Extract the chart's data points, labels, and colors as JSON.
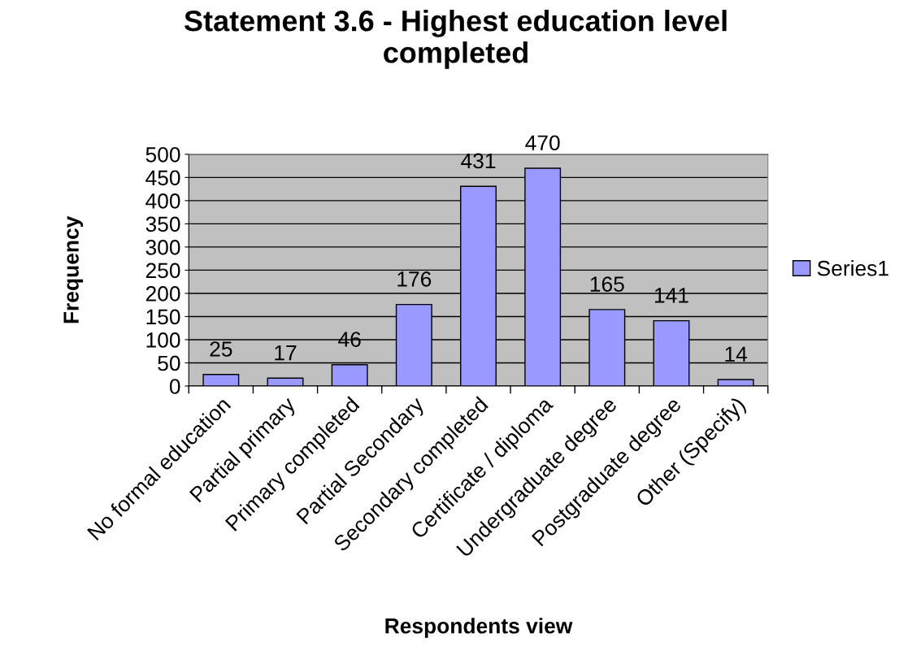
{
  "chart_data": {
    "type": "bar",
    "title": "Statement 3.6 - Highest education level\ncompleted",
    "xlabel": "Respondents view",
    "ylabel": "Frequency",
    "categories": [
      "No formal education",
      "Partial primary",
      "Primary completed",
      "Partial Secondary",
      "Secondary completed",
      "Certificate / diploma",
      "Undergraduate degree",
      "Postgraduate degree",
      "Other (Specify)"
    ],
    "series": [
      {
        "name": "Series1",
        "color": "#9999ff",
        "values": [
          25,
          17,
          46,
          176,
          431,
          470,
          165,
          141,
          14
        ]
      }
    ],
    "ylim": [
      0,
      500
    ],
    "yticks": [
      0,
      50,
      100,
      150,
      200,
      250,
      300,
      350,
      400,
      450,
      500
    ],
    "grid": "y",
    "legend": "right",
    "data_labels": true
  }
}
